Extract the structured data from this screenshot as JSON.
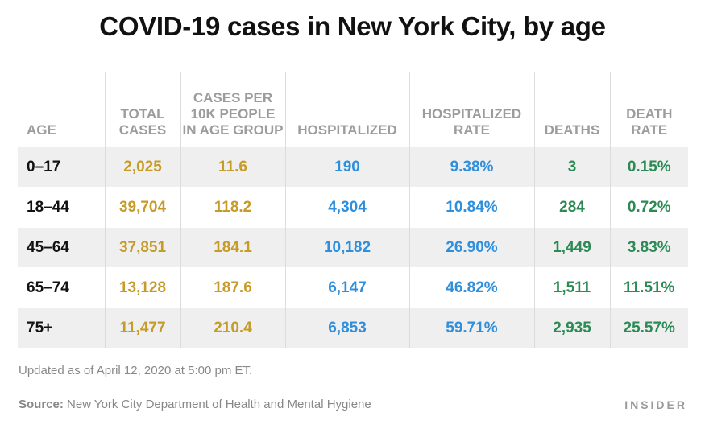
{
  "title": "COVID-19 cases in New York City, by age",
  "chart_data": {
    "type": "table",
    "columns": [
      "AGE",
      "TOTAL CASES",
      "CASES PER 10K PEOPLE IN AGE GROUP",
      "HOSPITALIZED",
      "HOSPITALIZED RATE",
      "DEATHS",
      "DEATH RATE"
    ],
    "rows": [
      [
        "0–17",
        "2,025",
        "11.6",
        "190",
        "9.38%",
        "3",
        "0.15%"
      ],
      [
        "18–44",
        "39,704",
        "118.2",
        "4,304",
        "10.84%",
        "284",
        "0.72%"
      ],
      [
        "45–64",
        "37,851",
        "184.1",
        "10,182",
        "26.90%",
        "1,449",
        "3.83%"
      ],
      [
        "65–74",
        "13,128",
        "187.6",
        "6,147",
        "46.82%",
        "1,511",
        "11.51%"
      ],
      [
        "75+",
        "11,477",
        "210.4",
        "6,853",
        "59.71%",
        "2,935",
        "25.57%"
      ]
    ],
    "column_colors": [
      "#111111",
      "#c79b27",
      "#c79b27",
      "#2f8fdc",
      "#2f8fdc",
      "#2c8a55",
      "#2c8a55"
    ],
    "row_shading": [
      "#efefef",
      "#ffffff",
      "#efefef",
      "#ffffff",
      "#efefef"
    ]
  },
  "footer": {
    "note": "Updated as of April 12, 2020 at 5:00 pm ET.",
    "source_label": "Source:",
    "source_text": "New York City Department of Health and Mental Hygiene",
    "brand": "INSIDER"
  }
}
